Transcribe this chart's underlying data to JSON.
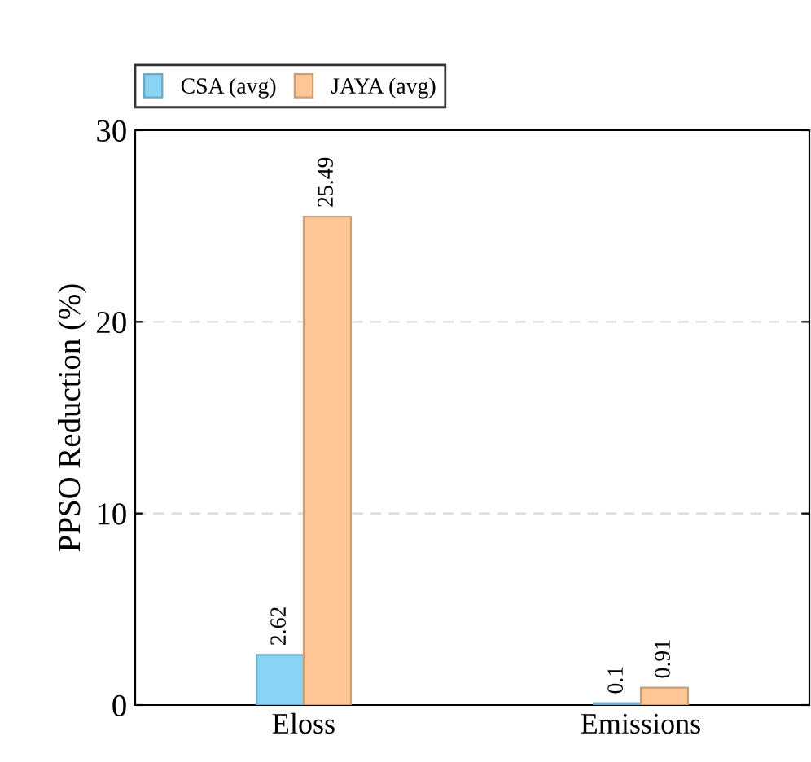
{
  "chart_data": {
    "type": "bar",
    "ylabel": "PPSO Reduction (%)",
    "categories": [
      "Eloss",
      "Emissions"
    ],
    "series": [
      {
        "name": "CSA (avg)",
        "color": "#87d4f5",
        "values": [
          2.62,
          0.1
        ]
      },
      {
        "name": "JAYA (avg)",
        "color": "#fdc795",
        "values": [
          25.49,
          0.91
        ]
      }
    ],
    "ylim": [
      0,
      30
    ],
    "yticks": [
      0,
      10,
      20,
      30
    ],
    "grid": "y",
    "legend": "top left",
    "data_labels": true
  }
}
